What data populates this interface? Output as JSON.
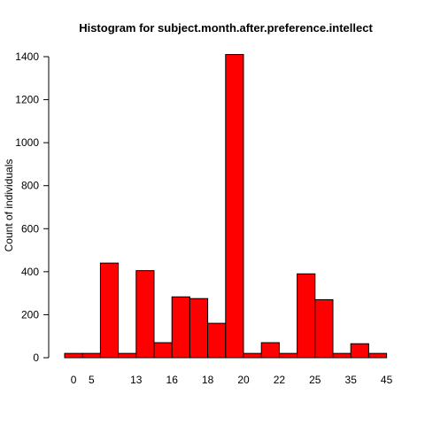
{
  "chart_data": {
    "type": "bar",
    "title": "Histogram for subject.month.after.preference.intellect",
    "xlabel": "",
    "ylabel": "Count of individuals",
    "ylim": [
      0,
      1400
    ],
    "yticks": [
      0,
      200,
      400,
      600,
      800,
      1000,
      1200,
      1400
    ],
    "grid": false,
    "legend": "none",
    "bar_color": "#ff0000",
    "bar_border_color": "#000000",
    "bar_values": [
      20,
      20,
      440,
      20,
      405,
      70,
      283,
      275,
      160,
      1410,
      20,
      70,
      20,
      390,
      270,
      20,
      65,
      20
    ],
    "x_tick_labels": [
      {
        "label": "0",
        "bar_index": 0
      },
      {
        "label": "5",
        "bar_index": 1
      },
      {
        "label": "13",
        "bar_index": 3.5
      },
      {
        "label": "16",
        "bar_index": 5.5
      },
      {
        "label": "18",
        "bar_index": 7.5
      },
      {
        "label": "20",
        "bar_index": 9.5
      },
      {
        "label": "22",
        "bar_index": 11.5
      },
      {
        "label": "25",
        "bar_index": 13.5
      },
      {
        "label": "35",
        "bar_index": 15.5
      },
      {
        "label": "45",
        "bar_index": 17.5
      }
    ]
  }
}
